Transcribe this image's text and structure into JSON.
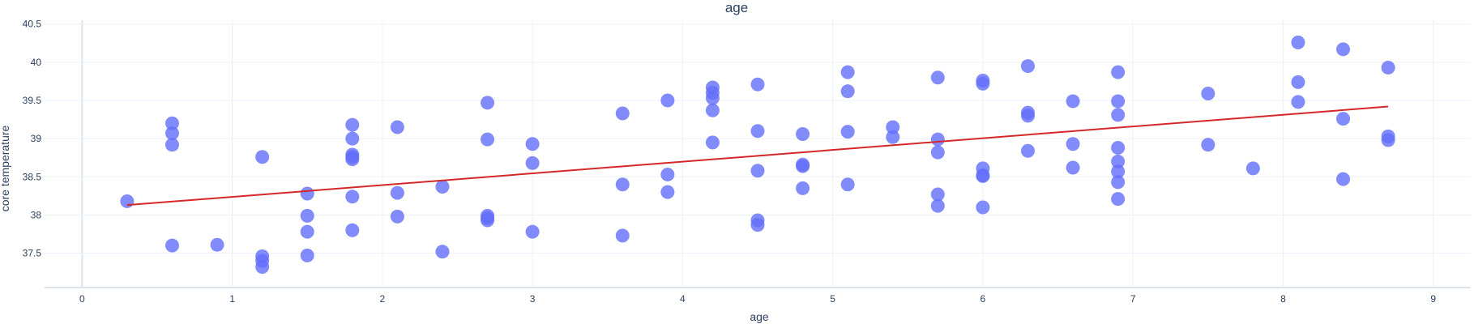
{
  "chart_data": {
    "type": "scatter",
    "title": "age",
    "xlabel": "age",
    "ylabel": "core temperature",
    "xlim": [
      -0.25,
      9.25
    ],
    "ylim": [
      37.05,
      40.55
    ],
    "xticks": [
      0,
      1,
      2,
      3,
      4,
      5,
      6,
      7,
      8,
      9
    ],
    "yticks": [
      37.5,
      38,
      38.5,
      39,
      39.5,
      40,
      40.5
    ],
    "ytick_labels": [
      "37.5",
      "38",
      "38.5",
      "39",
      "39.5",
      "40",
      "40.5"
    ],
    "grid": true,
    "colors": {
      "marker": "#636efa",
      "trend": "#d62728"
    },
    "trendline": {
      "x": [
        0.3,
        8.7
      ],
      "y": [
        38.13,
        39.42
      ]
    },
    "points": [
      [
        0.3,
        38.18
      ],
      [
        0.6,
        39.2
      ],
      [
        0.6,
        39.07
      ],
      [
        0.6,
        38.92
      ],
      [
        0.6,
        37.6
      ],
      [
        0.9,
        37.61
      ],
      [
        1.2,
        38.76
      ],
      [
        1.2,
        37.46
      ],
      [
        1.2,
        37.4
      ],
      [
        1.2,
        37.32
      ],
      [
        1.5,
        38.28
      ],
      [
        1.5,
        37.99
      ],
      [
        1.5,
        37.78
      ],
      [
        1.5,
        37.47
      ],
      [
        1.8,
        39.18
      ],
      [
        1.8,
        39.0
      ],
      [
        1.8,
        38.79
      ],
      [
        1.8,
        38.76
      ],
      [
        1.8,
        38.73
      ],
      [
        1.8,
        38.24
      ],
      [
        1.8,
        37.8
      ],
      [
        2.1,
        39.15
      ],
      [
        2.1,
        38.29
      ],
      [
        2.1,
        37.98
      ],
      [
        2.4,
        38.37
      ],
      [
        2.4,
        37.52
      ],
      [
        2.7,
        39.47
      ],
      [
        2.7,
        38.99
      ],
      [
        2.7,
        37.99
      ],
      [
        2.7,
        37.96
      ],
      [
        2.7,
        37.93
      ],
      [
        3.0,
        38.93
      ],
      [
        3.0,
        38.68
      ],
      [
        3.0,
        37.78
      ],
      [
        3.6,
        39.33
      ],
      [
        3.6,
        38.4
      ],
      [
        3.6,
        37.73
      ],
      [
        3.9,
        39.5
      ],
      [
        3.9,
        38.53
      ],
      [
        3.9,
        38.3
      ],
      [
        4.2,
        39.67
      ],
      [
        4.2,
        39.6
      ],
      [
        4.2,
        39.53
      ],
      [
        4.2,
        39.37
      ],
      [
        4.2,
        38.95
      ],
      [
        4.5,
        39.71
      ],
      [
        4.5,
        39.1
      ],
      [
        4.5,
        38.58
      ],
      [
        4.5,
        37.93
      ],
      [
        4.5,
        37.87
      ],
      [
        4.8,
        39.06
      ],
      [
        4.8,
        38.66
      ],
      [
        4.8,
        38.64
      ],
      [
        4.8,
        38.35
      ],
      [
        5.1,
        39.87
      ],
      [
        5.1,
        39.62
      ],
      [
        5.1,
        39.09
      ],
      [
        5.1,
        38.4
      ],
      [
        5.4,
        39.15
      ],
      [
        5.4,
        39.02
      ],
      [
        5.7,
        39.8
      ],
      [
        5.7,
        38.99
      ],
      [
        5.7,
        38.82
      ],
      [
        5.7,
        38.27
      ],
      [
        5.7,
        38.12
      ],
      [
        6.0,
        39.76
      ],
      [
        6.0,
        39.72
      ],
      [
        6.0,
        38.61
      ],
      [
        6.0,
        38.52
      ],
      [
        6.0,
        38.51
      ],
      [
        6.0,
        38.1
      ],
      [
        6.3,
        39.95
      ],
      [
        6.3,
        39.34
      ],
      [
        6.3,
        39.3
      ],
      [
        6.3,
        38.84
      ],
      [
        6.6,
        39.49
      ],
      [
        6.6,
        38.93
      ],
      [
        6.6,
        38.62
      ],
      [
        6.9,
        39.87
      ],
      [
        6.9,
        39.49
      ],
      [
        6.9,
        39.31
      ],
      [
        6.9,
        38.88
      ],
      [
        6.9,
        38.7
      ],
      [
        6.9,
        38.57
      ],
      [
        6.9,
        38.43
      ],
      [
        6.9,
        38.21
      ],
      [
        7.5,
        39.59
      ],
      [
        7.5,
        38.92
      ],
      [
        7.8,
        38.61
      ],
      [
        8.1,
        40.26
      ],
      [
        8.1,
        39.74
      ],
      [
        8.1,
        39.48
      ],
      [
        8.4,
        40.17
      ],
      [
        8.4,
        39.26
      ],
      [
        8.4,
        38.47
      ],
      [
        8.7,
        39.93
      ],
      [
        8.7,
        39.03
      ],
      [
        8.7,
        38.98
      ]
    ]
  }
}
